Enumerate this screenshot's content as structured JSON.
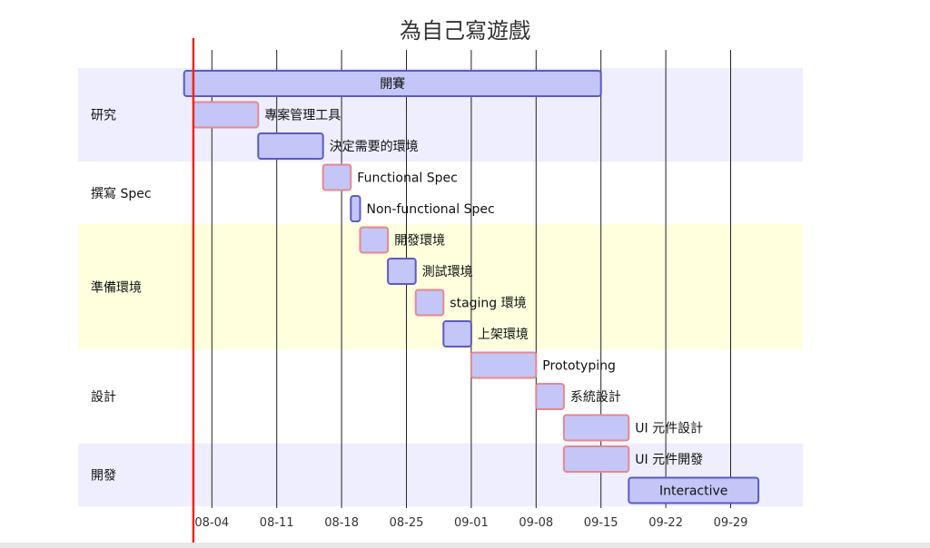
{
  "chart_data": {
    "type": "gantt",
    "title": "為自己寫遊戲",
    "axis_start": "2021-07-31",
    "axis_end": "2021-10-05",
    "today": "2021-08-02",
    "ticks": [
      "08-04",
      "08-11",
      "08-18",
      "08-25",
      "09-01",
      "09-08",
      "09-15",
      "09-22",
      "09-29"
    ],
    "tick_dates": [
      "2021-08-04",
      "2021-08-11",
      "2021-08-18",
      "2021-08-25",
      "2021-09-01",
      "2021-09-08",
      "2021-09-15",
      "2021-09-22",
      "2021-09-29"
    ],
    "sections": [
      {
        "name": "研究",
        "color": "#eeeeff",
        "task_range": [
          0,
          2
        ]
      },
      {
        "name": "撰寫 Spec",
        "color": "#ffffff",
        "task_range": [
          3,
          4
        ]
      },
      {
        "name": "準備環境",
        "color": "#ffffde",
        "task_range": [
          5,
          8
        ]
      },
      {
        "name": "設計",
        "color": "#ffffff",
        "task_range": [
          9,
          11
        ]
      },
      {
        "name": "開發",
        "color": "#eeeeff",
        "task_range": [
          12,
          13
        ]
      }
    ],
    "tasks": [
      {
        "name": "開賽",
        "start": "2021-08-01",
        "end": "2021-09-15",
        "style": "active",
        "label_inside": true
      },
      {
        "name": "專案管理工具",
        "start": "2021-08-02",
        "end": "2021-08-09",
        "style": "pink",
        "label_inside": false
      },
      {
        "name": "決定需要的環境",
        "start": "2021-08-09",
        "end": "2021-08-16",
        "style": "active",
        "label_inside": false
      },
      {
        "name": "Functional Spec",
        "start": "2021-08-16",
        "end": "2021-08-19",
        "style": "pink",
        "label_inside": false
      },
      {
        "name": "Non-functional Spec",
        "start": "2021-08-19",
        "end": "2021-08-20",
        "style": "active",
        "label_inside": false
      },
      {
        "name": "開發環境",
        "start": "2021-08-20",
        "end": "2021-08-23",
        "style": "pink",
        "label_inside": false
      },
      {
        "name": "測試環境",
        "start": "2021-08-23",
        "end": "2021-08-26",
        "style": "active",
        "label_inside": false
      },
      {
        "name": "staging 環境",
        "start": "2021-08-26",
        "end": "2021-08-29",
        "style": "pink",
        "label_inside": false
      },
      {
        "name": "上架環境",
        "start": "2021-08-29",
        "end": "2021-09-01",
        "style": "active",
        "label_inside": false
      },
      {
        "name": "Prototyping",
        "start": "2021-09-01",
        "end": "2021-09-08",
        "style": "pink",
        "label_inside": false
      },
      {
        "name": "系統設計",
        "start": "2021-09-08",
        "end": "2021-09-11",
        "style": "pink",
        "label_inside": false
      },
      {
        "name": "UI 元件設計",
        "start": "2021-09-11",
        "end": "2021-09-18",
        "style": "pink",
        "label_inside": false
      },
      {
        "name": "UI 元件開發",
        "start": "2021-09-11",
        "end": "2021-09-18",
        "style": "pink",
        "label_inside": false
      },
      {
        "name": "Interactive",
        "start": "2021-09-18",
        "end": "2021-10-02",
        "style": "active",
        "label_inside": true
      }
    ],
    "colors": {
      "bar_fill": "#c3c6f7",
      "active_stroke": "#5b5bc2",
      "pink_stroke": "#e8878f",
      "today_line": "#e8291c",
      "grid": "#222222"
    }
  }
}
